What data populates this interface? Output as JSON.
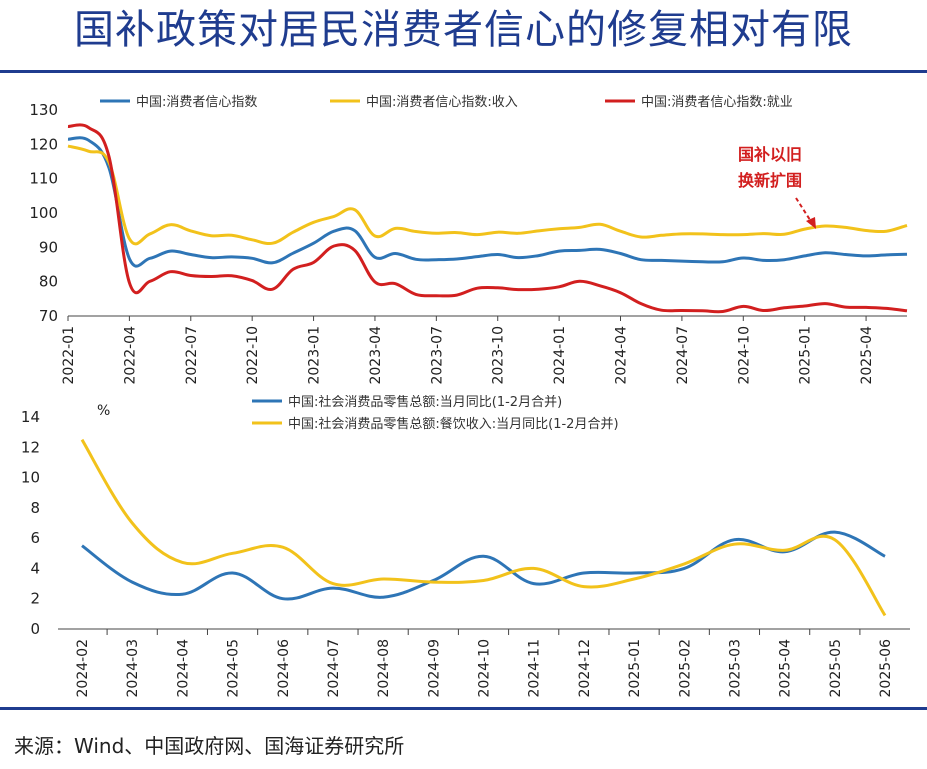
{
  "title": "国补政策对居民消费者信心的修复相对有限",
  "source": "来源：Wind、中国政府网、国海证券研究所",
  "colors": {
    "blue": "#2e75b6",
    "yellow": "#f2c21b",
    "red": "#d21f1f",
    "title": "#1f3c8f"
  },
  "chart_data": [
    {
      "type": "line",
      "x_ticks": [
        "2022-01",
        "2022-04",
        "2022-07",
        "2022-10",
        "2023-01",
        "2023-04",
        "2023-07",
        "2023-10",
        "2024-01",
        "2024-04",
        "2024-07",
        "2024-10",
        "2025-01",
        "2025-04"
      ],
      "ylim": [
        70,
        130
      ],
      "y_ticks": [
        70,
        80,
        90,
        100,
        110,
        120,
        130
      ],
      "annotation": [
        "国补以旧",
        "换新扩围"
      ],
      "series": [
        {
          "name": "中国:消费者信心指数",
          "color": "#2e75b6",
          "values": [
            121.5,
            121.2,
            113.2,
            86.7,
            86.8,
            88.9,
            87.9,
            87.0,
            87.2,
            86.8,
            85.5,
            88.3,
            91.2,
            94.7,
            94.9,
            87.1,
            88.2,
            86.5,
            86.4,
            86.6,
            87.3,
            87.9,
            87.0,
            87.6,
            88.9,
            89.1,
            89.4,
            88.2,
            86.4,
            86.2,
            86.0,
            85.8,
            85.8,
            86.9,
            86.2,
            86.4,
            87.5,
            88.4,
            87.9,
            87.5,
            87.8,
            88.0
          ],
          "x_start": "2022-01"
        },
        {
          "name": "中国:消费者信心指数:收入",
          "color": "#f2c21b",
          "values": [
            119.5,
            118.0,
            114.8,
            92.5,
            93.9,
            96.6,
            94.8,
            93.4,
            93.5,
            92.2,
            91.2,
            94.4,
            97.3,
            99.0,
            101.0,
            93.3,
            95.5,
            94.6,
            94.1,
            94.3,
            93.7,
            94.4,
            94.1,
            94.8,
            95.4,
            95.8,
            96.7,
            94.7,
            93.0,
            93.5,
            93.9,
            93.9,
            93.7,
            93.7,
            94.0,
            93.8,
            95.3,
            96.2,
            95.8,
            94.9,
            94.7,
            96.4
          ],
          "x_start": "2022-01"
        },
        {
          "name": "中国:消费者信心指数:就业",
          "color": "#d21f1f",
          "values": [
            125.2,
            124.9,
            116.5,
            79.7,
            80.1,
            82.9,
            81.8,
            81.5,
            81.7,
            80.3,
            77.8,
            83.6,
            85.6,
            90.4,
            89.2,
            79.9,
            79.4,
            76.3,
            75.9,
            76.1,
            78.1,
            78.2,
            77.7,
            77.8,
            78.5,
            80.1,
            78.8,
            76.8,
            73.6,
            71.7,
            71.6,
            71.5,
            71.3,
            72.8,
            71.6,
            72.4,
            72.9,
            73.6,
            72.6,
            72.5,
            72.2,
            71.5
          ],
          "x_start": "2022-01"
        }
      ]
    },
    {
      "type": "line",
      "unit_label": "%",
      "x_ticks": [
        "2024-02",
        "2024-03",
        "2024-04",
        "2024-05",
        "2024-06",
        "2024-07",
        "2024-08",
        "2024-09",
        "2024-10",
        "2024-11",
        "2024-12",
        "2025-01",
        "2025-02",
        "2025-03",
        "2025-04",
        "2025-05",
        "2025-06"
      ],
      "ylim": [
        0,
        14
      ],
      "y_ticks": [
        0,
        2,
        4,
        6,
        8,
        10,
        12,
        14
      ],
      "series": [
        {
          "name": "中国:社会消费品零售总额:当月同比(1-2月合并)",
          "color": "#2e75b6",
          "values": [
            5.5,
            3.1,
            2.3,
            3.7,
            2.0,
            2.7,
            2.1,
            3.2,
            4.8,
            3.0,
            3.7,
            3.7,
            4.0,
            5.9,
            5.1,
            6.4,
            4.8
          ]
        },
        {
          "name": "中国:社会消费品零售总额:餐饮收入:当月同比(1-2月合并)",
          "color": "#f2c21b",
          "values": [
            12.5,
            7.0,
            4.4,
            5.0,
            5.4,
            3.0,
            3.3,
            3.1,
            3.2,
            4.0,
            2.8,
            3.3,
            4.3,
            5.6,
            5.2,
            5.9,
            0.9
          ]
        }
      ]
    }
  ]
}
